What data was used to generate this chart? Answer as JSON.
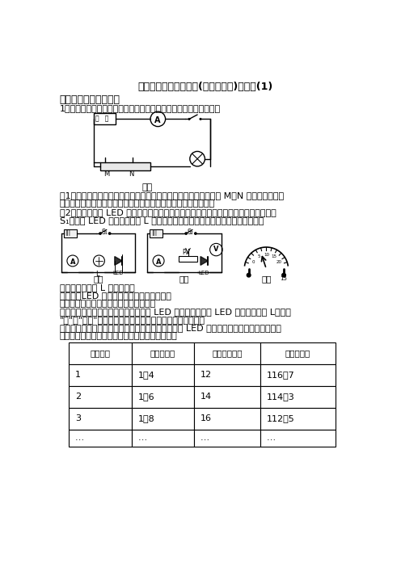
{
  "title": "初中物理中考电学实验(讲义及答案)含答案(1)",
  "section1": "一、中考物理电学实验",
  "question1": "1．小明利用铅笔芯和鳄鱼夹制作了简易调光灯，装置如图甲所示。",
  "fig_label1": "图甲",
  "para1_line1": "（1）甲图中有一处明显错误是＿；改正后，闭合开关，改变鳄鱼夹 M、N 之间距离，发现",
  "para1_line2": "灯泡亮度会发生变化，这一现象说明导体的电阻与导体的＿有关．",
  "para2_line1": "（2）小明用一个 LED 灯替换铅笔芯，与小灯泡串联后接入电路（如图乙），闭合开关",
  "para2_line2": "S₁，发现 LED 灯亮而小灯泡 L 不亮，针对这种现象，同学们提出了以下猜想：",
  "fig_label2": "图乙",
  "fig_label3": "图丙",
  "fig_label4": "图丁",
  "guess1": "猜想一：小灯泡 L 处发生短路",
  "guess2": "猜想二：LED 灯电阻很大导致电路电流很小",
  "verify": "为了验证猜想，小组同学进行如下实验：",
  "exp1_line1": "实验一：将一根导线并联在图乙电路中 LED 灯的两端，此时 LED 灯＿，小灯泡 L＿（填",
  "exp1_line2": "\"亮\"或\"不亮\"），根据观察到的现象说明猜想一是错误的．",
  "exp2_line1": "实验二：利用电流表和电压表，按图丙所示的电路对 LED 灯的电阻进行测量．闭合开关依",
  "exp2_line2": "次移动滑动变阻器的滑片，获得多组数据如下表．",
  "table_headers": [
    "实验次数",
    "电压（伏）",
    "电流（毫安）",
    "电阻（欧）"
  ],
  "table_row1": [
    "1",
    "1．4",
    "12",
    "116．7"
  ],
  "table_row2": [
    "2",
    "1．6",
    "14",
    "114．3"
  ],
  "table_row3": [
    "3",
    "1．8",
    "16",
    "112．5"
  ],
  "table_row4": [
    "…",
    "…",
    "…",
    "…"
  ],
  "bg_color": "#ffffff",
  "text_color": "#000000"
}
